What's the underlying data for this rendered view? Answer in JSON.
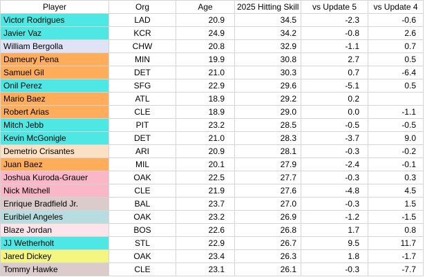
{
  "headers": [
    "Player",
    "Org",
    "Age",
    "2025 Hitting Skill",
    "vs Update 5",
    "vs Update 4"
  ],
  "rows": [
    {
      "player": "Victor Rodrigues",
      "org": "LAD",
      "age": "20.9",
      "skill": "34.5",
      "v5": "-2.3",
      "v4": "-0.6",
      "color": "#4de8e4"
    },
    {
      "player": "Javier Vaz",
      "org": "KCR",
      "age": "24.9",
      "skill": "34.2",
      "v5": "-0.8",
      "v4": "2.6",
      "color": "#4de8e4"
    },
    {
      "player": "William Bergolla",
      "org": "CHW",
      "age": "20.8",
      "skill": "32.9",
      "v5": "-1.1",
      "v4": "0.7",
      "color": "#dfe3f5"
    },
    {
      "player": "Dameury Pena",
      "org": "MIN",
      "age": "19.9",
      "skill": "30.8",
      "v5": "2.7",
      "v4": "0.5",
      "color": "#ffad5b"
    },
    {
      "player": "Samuel Gil",
      "org": "DET",
      "age": "21.0",
      "skill": "30.3",
      "v5": "0.7",
      "v4": "-6.4",
      "color": "#ffad5b"
    },
    {
      "player": "Onil Perez",
      "org": "SFG",
      "age": "22.9",
      "skill": "29.6",
      "v5": "-5.1",
      "v4": "0.5",
      "color": "#4de8e4"
    },
    {
      "player": "Mario Baez",
      "org": "ATL",
      "age": "18.9",
      "skill": "29.2",
      "v5": "0.2",
      "v4": "",
      "color": "#ffad5b"
    },
    {
      "player": "Robert Arias",
      "org": "CLE",
      "age": "18.9",
      "skill": "29.0",
      "v5": "0.0",
      "v4": "-1.1",
      "color": "#ffad5b"
    },
    {
      "player": "Mitch Jebb",
      "org": "PIT",
      "age": "23.2",
      "skill": "28.5",
      "v5": "-0.5",
      "v4": "-0.5",
      "color": "#4de8e4"
    },
    {
      "player": "Kevin McGonigle",
      "org": "DET",
      "age": "21.0",
      "skill": "28.3",
      "v5": "-3.7",
      "v4": "9.0",
      "color": "#4de8e4"
    },
    {
      "player": "Demetrio Crisantes",
      "org": "ARI",
      "age": "20.9",
      "skill": "28.1",
      "v5": "-0.3",
      "v4": "-0.2",
      "color": "#fce0c4"
    },
    {
      "player": "Juan Baez",
      "org": "MIL",
      "age": "20.1",
      "skill": "27.9",
      "v5": "-2.4",
      "v4": "-0.1",
      "color": "#ffad5b"
    },
    {
      "player": "Joshua Kuroda-Grauer",
      "org": "OAK",
      "age": "22.5",
      "skill": "27.7",
      "v5": "-0.3",
      "v4": "0.3",
      "color": "#f9b7c8"
    },
    {
      "player": "Nick Mitchell",
      "org": "CLE",
      "age": "21.9",
      "skill": "27.6",
      "v5": "-4.8",
      "v4": "4.5",
      "color": "#f9b7c8"
    },
    {
      "player": "Enrique Bradfield Jr.",
      "org": "BAL",
      "age": "23.7",
      "skill": "27.0",
      "v5": "-0.3",
      "v4": "1.5",
      "color": "#dccbcb"
    },
    {
      "player": "Euribiel Angeles",
      "org": "OAK",
      "age": "23.2",
      "skill": "26.9",
      "v5": "-1.2",
      "v4": "-1.5",
      "color": "#b8dde0"
    },
    {
      "player": "Blaze Jordan",
      "org": "BOS",
      "age": "22.6",
      "skill": "26.8",
      "v5": "1.7",
      "v4": "0.8",
      "color": "#fbe4ea"
    },
    {
      "player": "JJ Wetherholt",
      "org": "STL",
      "age": "22.9",
      "skill": "26.7",
      "v5": "9.5",
      "v4": "11.7",
      "color": "#4de8e4"
    },
    {
      "player": "Jared Dickey",
      "org": "OAK",
      "age": "23.4",
      "skill": "26.3",
      "v5": "1.8",
      "v4": "-1.7",
      "color": "#f5f582"
    },
    {
      "player": "Tommy Hawke",
      "org": "CLE",
      "age": "23.1",
      "skill": "26.1",
      "v5": "-0.3",
      "v4": "-7.7",
      "color": "#dccbcb"
    }
  ]
}
